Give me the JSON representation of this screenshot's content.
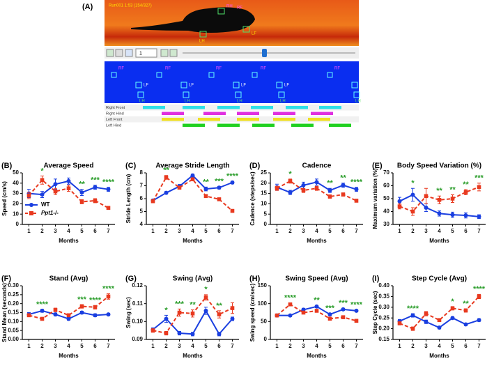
{
  "panel_a": {
    "label": "(A)",
    "run": "Run001 1:53 (154/327)",
    "speed": "1",
    "paws": [
      "RH",
      "RF",
      "LF",
      "LH"
    ],
    "rows": [
      "Right Front",
      "Right Hind",
      "Left Front",
      "Left Hind"
    ]
  },
  "chart_data": [
    {
      "type": "line",
      "label": "(B)",
      "title": "Average Speed",
      "xlabel": "Months",
      "ylabel": "Speed (cm/s)",
      "x": [
        1,
        2,
        3,
        4,
        5,
        6,
        7
      ],
      "xlim": [
        0.5,
        7.5
      ],
      "xticks": [
        1,
        2,
        3,
        4,
        5,
        6,
        7
      ],
      "ylim": [
        0,
        50
      ],
      "yticks": [
        0,
        10,
        20,
        30,
        40,
        50
      ],
      "legend": "lower left",
      "series": [
        {
          "name": "WT",
          "color": "#1a3fe0",
          "marker": "circle",
          "dash": false,
          "values": [
            30,
            29,
            39,
            42,
            31,
            36,
            34
          ],
          "errors": [
            4,
            3,
            5,
            3,
            3,
            2,
            2
          ]
        },
        {
          "name": "Ppt1-/-",
          "color": "#e8391f",
          "marker": "square",
          "dash": true,
          "values": [
            28,
            43,
            32,
            35,
            22,
            23,
            16
          ],
          "errors": [
            3,
            4,
            3,
            3,
            2,
            2,
            1
          ]
        }
      ],
      "annotations": [
        {
          "x": 2,
          "text": "*"
        },
        {
          "x": 5,
          "text": "**"
        },
        {
          "x": 6,
          "text": "***"
        },
        {
          "x": 7,
          "text": "****"
        }
      ]
    },
    {
      "type": "line",
      "label": "(C)",
      "title": "Average Stride Length",
      "xlabel": "Months",
      "ylabel": "Stride Length (cm)",
      "x": [
        1,
        2,
        3,
        4,
        5,
        6,
        7
      ],
      "xlim": [
        0.5,
        7.5
      ],
      "xticks": [
        1,
        2,
        3,
        4,
        5,
        6,
        7
      ],
      "ylim": [
        4,
        8
      ],
      "yticks": [
        4,
        5,
        6,
        7,
        8
      ],
      "series": [
        {
          "color": "#1a3fe0",
          "marker": "circle",
          "dash": false,
          "values": [
            5.85,
            6.45,
            6.95,
            7.8,
            6.75,
            6.85,
            7.25
          ],
          "errors": [
            0.1,
            0.1,
            0.15,
            0.1,
            0.15,
            0.1,
            0.1
          ]
        },
        {
          "color": "#e8391f",
          "marker": "square",
          "dash": true,
          "values": [
            5.8,
            7.65,
            6.85,
            7.5,
            6.2,
            5.95,
            5.05
          ],
          "errors": [
            0.1,
            0.15,
            0.1,
            0.1,
            0.1,
            0.1,
            0.1
          ]
        }
      ],
      "annotations": [
        {
          "x": 2,
          "text": "**"
        },
        {
          "x": 5,
          "text": "**"
        },
        {
          "x": 6,
          "text": "***"
        },
        {
          "x": 7,
          "text": "****"
        }
      ]
    },
    {
      "type": "line",
      "label": "(D)",
      "title": "Cadence",
      "xlabel": "Months",
      "ylabel": "Cadence (steps/sec)",
      "x": [
        1,
        2,
        3,
        4,
        5,
        6,
        7
      ],
      "xlim": [
        0.5,
        7.5
      ],
      "xticks": [
        1,
        2,
        3,
        4,
        5,
        6,
        7
      ],
      "ylim": [
        0,
        25
      ],
      "yticks": [
        0,
        5,
        10,
        15,
        20,
        25
      ],
      "series": [
        {
          "color": "#1a3fe0",
          "marker": "circle",
          "dash": false,
          "values": [
            18,
            15.5,
            19,
            20.5,
            16.5,
            19,
            17
          ],
          "errors": [
            1.5,
            1,
            1.5,
            1.5,
            1,
            1,
            1
          ]
        },
        {
          "color": "#e8391f",
          "marker": "square",
          "dash": true,
          "values": [
            17.5,
            21,
            16.5,
            17.5,
            13.5,
            14.5,
            11.5
          ],
          "errors": [
            1,
            1,
            1,
            1,
            0.8,
            0.8,
            0.6
          ]
        }
      ],
      "annotations": [
        {
          "x": 2,
          "text": "*"
        },
        {
          "x": 5,
          "text": "**"
        },
        {
          "x": 6,
          "text": "**"
        },
        {
          "x": 7,
          "text": "****"
        }
      ]
    },
    {
      "type": "line",
      "label": "(E)",
      "title": "Body Speed Variation (%)",
      "xlabel": "Months",
      "ylabel": "Maximum variation (%)",
      "x": [
        1,
        2,
        3,
        4,
        5,
        6,
        7
      ],
      "xlim": [
        0.5,
        7.5
      ],
      "xticks": [
        1,
        2,
        3,
        4,
        5,
        6,
        7
      ],
      "ylim": [
        30,
        70
      ],
      "yticks": [
        30,
        40,
        50,
        60,
        70
      ],
      "series": [
        {
          "color": "#1a3fe0",
          "marker": "circle",
          "dash": false,
          "values": [
            48,
            53,
            43,
            38.5,
            37.5,
            37,
            36
          ],
          "errors": [
            3,
            5,
            3,
            2,
            2,
            2,
            1.5
          ]
        },
        {
          "color": "#e8391f",
          "marker": "square",
          "dash": true,
          "values": [
            44,
            40,
            52,
            49,
            50,
            55,
            59
          ],
          "errors": [
            2,
            3,
            6,
            3,
            3,
            2,
            3
          ]
        }
      ],
      "annotations": [
        {
          "x": 2,
          "text": "*"
        },
        {
          "x": 4,
          "text": "**"
        },
        {
          "x": 5,
          "text": "**"
        },
        {
          "x": 6,
          "text": "**"
        },
        {
          "x": 7,
          "text": "***"
        }
      ]
    },
    {
      "type": "line",
      "label": "(F)",
      "title": "Stand (Avg)",
      "xlabel": "Months",
      "ylabel": "Stand Mean (seconds)",
      "x": [
        1,
        2,
        3,
        4,
        5,
        6,
        7
      ],
      "xlim": [
        0.5,
        7.5
      ],
      "xticks": [
        1,
        2,
        3,
        4,
        5,
        6,
        7
      ],
      "ylim": [
        0,
        0.3
      ],
      "yticks": [
        {
          "value": 0,
          "label": "0.00"
        },
        0.05,
        {
          "value": 0.1,
          "label": "0.10"
        },
        0.15,
        {
          "value": 0.2,
          "label": "0.20"
        },
        0.25,
        {
          "value": 0.3,
          "label": "0.30"
        }
      ],
      "series": [
        {
          "color": "#1a3fe0",
          "marker": "circle",
          "dash": false,
          "values": [
            0.14,
            0.16,
            0.14,
            0.115,
            0.15,
            0.135,
            0.14
          ],
          "errors": [
            0.01,
            0.008,
            0.008,
            0.008,
            0.008,
            0.008,
            0.006
          ]
        },
        {
          "color": "#e8391f",
          "marker": "square",
          "dash": true,
          "values": [
            0.135,
            0.115,
            0.165,
            0.135,
            0.185,
            0.18,
            0.24
          ],
          "errors": [
            0.008,
            0.008,
            0.01,
            0.008,
            0.01,
            0.01,
            0.015
          ]
        }
      ],
      "annotations": [
        {
          "x": 2,
          "text": "****"
        },
        {
          "x": 5,
          "text": "***"
        },
        {
          "x": 6,
          "text": "****"
        },
        {
          "x": 7,
          "text": "****"
        }
      ]
    },
    {
      "type": "line",
      "label": "(G)",
      "title": "Swing (Avg)",
      "xlabel": "Months",
      "ylabel": "Swing (sec)",
      "x": [
        1,
        2,
        3,
        4,
        5,
        6,
        7
      ],
      "xlim": [
        0.5,
        7.5
      ],
      "xticks": [
        1,
        2,
        3,
        4,
        5,
        6,
        7
      ],
      "ylim": [
        0.09,
        0.12
      ],
      "yticks": [
        0.09,
        {
          "value": 0.1,
          "label": "0.10"
        },
        0.11,
        {
          "value": 0.12,
          "label": "0.12"
        }
      ],
      "series": [
        {
          "color": "#1a3fe0",
          "marker": "circle",
          "dash": false,
          "values": [
            0.0955,
            0.1015,
            0.0935,
            0.093,
            0.106,
            0.093,
            0.1015
          ],
          "errors": [
            0.001,
            0.002,
            0.001,
            0.001,
            0.002,
            0.001,
            0.001
          ]
        },
        {
          "color": "#e8391f",
          "marker": "square",
          "dash": true,
          "values": [
            0.095,
            0.0935,
            0.105,
            0.1045,
            0.1135,
            0.104,
            0.1075
          ],
          "errors": [
            0.001,
            0.001,
            0.002,
            0.002,
            0.0015,
            0.002,
            0.003
          ]
        }
      ],
      "annotations": [
        {
          "x": 2,
          "text": "*"
        },
        {
          "x": 3,
          "text": "***"
        },
        {
          "x": 4,
          "text": "**"
        },
        {
          "x": 5,
          "text": "*"
        },
        {
          "x": 6,
          "text": "**"
        }
      ]
    },
    {
      "type": "line",
      "label": "(H)",
      "title": "Swing Speed (Avg)",
      "xlabel": "Months",
      "ylabel": "Swing speed (cm/sec)",
      "x": [
        1,
        2,
        3,
        4,
        5,
        6,
        7
      ],
      "xlim": [
        0.5,
        7.5
      ],
      "xticks": [
        1,
        2,
        3,
        4,
        5,
        6,
        7
      ],
      "ylim": [
        0,
        150
      ],
      "yticks": [
        0,
        50,
        100,
        150
      ],
      "series": [
        {
          "color": "#1a3fe0",
          "marker": "circle",
          "dash": false,
          "values": [
            67,
            67,
            83,
            92,
            70,
            84,
            80
          ],
          "errors": [
            3,
            3,
            4,
            3,
            3,
            3,
            3
          ]
        },
        {
          "color": "#e8391f",
          "marker": "square",
          "dash": true,
          "values": [
            67,
            98,
            75,
            80,
            58,
            62,
            52
          ],
          "errors": [
            3,
            4,
            3,
            3,
            2,
            3,
            2
          ]
        }
      ],
      "annotations": [
        {
          "x": 2,
          "text": "****"
        },
        {
          "x": 4,
          "text": "**"
        },
        {
          "x": 5,
          "text": "***"
        },
        {
          "x": 6,
          "text": "***"
        },
        {
          "x": 7,
          "text": "****"
        }
      ]
    },
    {
      "type": "line",
      "label": "(I)",
      "title": "Step Cycle (Avg)",
      "xlabel": "Months",
      "ylabel": "Step Cycle (sec)",
      "x": [
        1,
        2,
        3,
        4,
        5,
        6,
        7
      ],
      "xlim": [
        0.5,
        7.5
      ],
      "xticks": [
        1,
        2,
        3,
        4,
        5,
        6,
        7
      ],
      "ylim": [
        0.15,
        0.4
      ],
      "yticks": [
        0.15,
        {
          "value": 0.2,
          "label": "0.20"
        },
        0.25,
        {
          "value": 0.3,
          "label": "0.30"
        },
        0.35,
        {
          "value": 0.4,
          "label": "0.40"
        }
      ],
      "series": [
        {
          "color": "#1a3fe0",
          "marker": "circle",
          "dash": false,
          "values": [
            0.235,
            0.262,
            0.232,
            0.205,
            0.25,
            0.22,
            0.24
          ],
          "errors": [
            0.008,
            0.008,
            0.008,
            0.006,
            0.006,
            0.006,
            0.006
          ]
        },
        {
          "color": "#e8391f",
          "marker": "square",
          "dash": true,
          "values": [
            0.225,
            0.2,
            0.27,
            0.24,
            0.295,
            0.285,
            0.35
          ],
          "errors": [
            0.006,
            0.008,
            0.01,
            0.006,
            0.008,
            0.008,
            0.01
          ]
        }
      ],
      "annotations": [
        {
          "x": 2,
          "text": "****"
        },
        {
          "x": 5,
          "text": "*"
        },
        {
          "x": 6,
          "text": "**"
        },
        {
          "x": 7,
          "text": "****"
        }
      ]
    }
  ]
}
